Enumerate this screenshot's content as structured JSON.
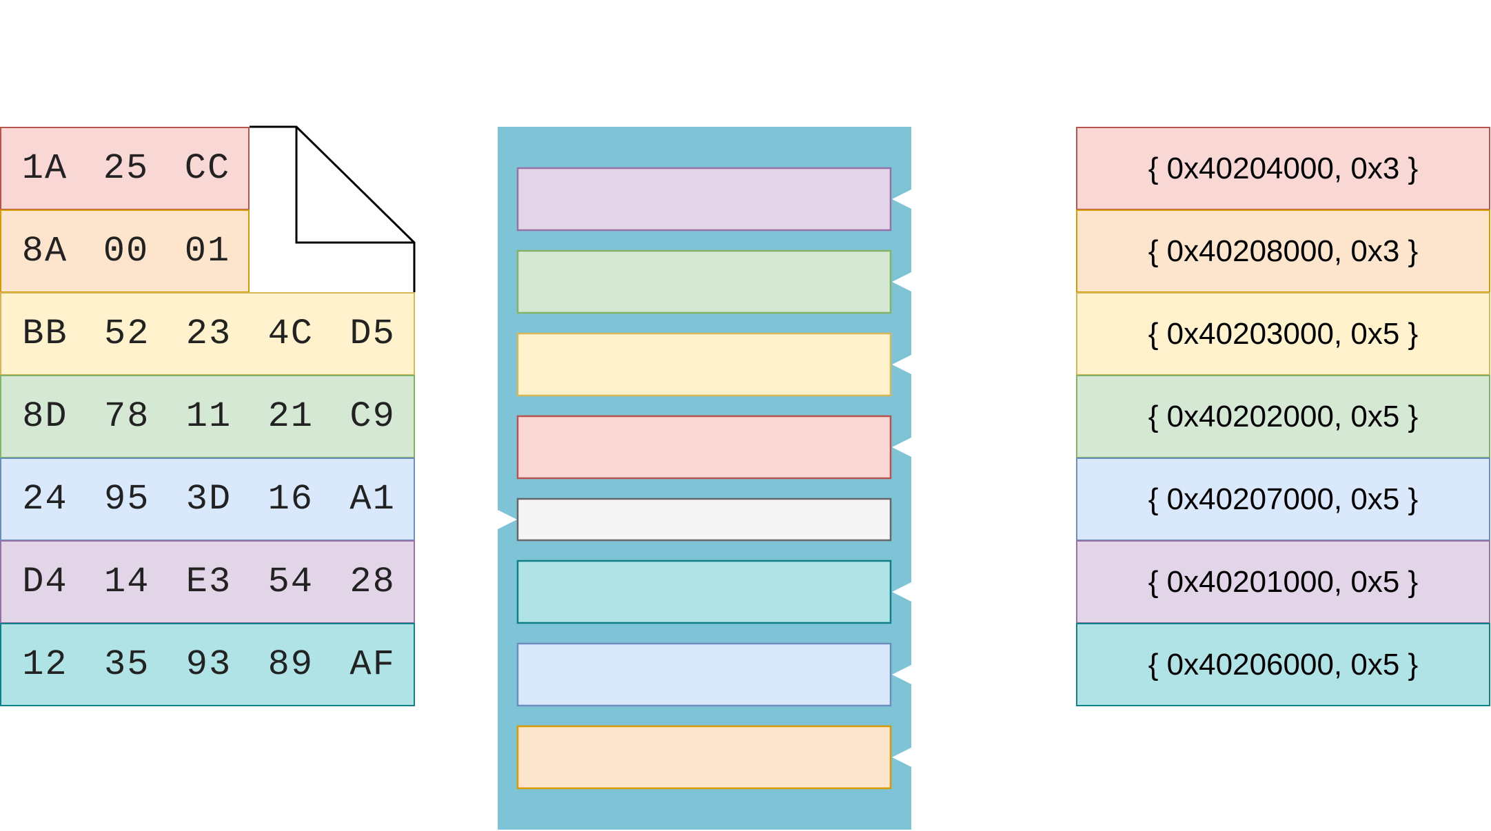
{
  "colors": {
    "red": {
      "fill": "#f8d7d5",
      "stroke": "#b85450"
    },
    "orange": {
      "fill": "#fde5cd",
      "stroke": "#d79b00"
    },
    "yellow": {
      "fill": "#fff2cc",
      "stroke": "#d6b656"
    },
    "green": {
      "fill": "#d5e8d4",
      "stroke": "#82b366"
    },
    "blue": {
      "fill": "#dae8fc",
      "stroke": "#6c8ebf"
    },
    "purple": {
      "fill": "#e1d5e7",
      "stroke": "#9673a6"
    },
    "teal": {
      "fill": "#b0e3e6",
      "stroke": "#0e8088"
    },
    "gray": {
      "fill": "#f5f5f5",
      "stroke": "#666666"
    },
    "cabinet": "#7fc3d6"
  },
  "file_rows": [
    {
      "color": "red",
      "bytes": [
        "1A",
        "25",
        "CC"
      ]
    },
    {
      "color": "orange",
      "bytes": [
        "8A",
        "00",
        "01"
      ]
    },
    {
      "color": "yellow",
      "bytes": [
        "BB",
        "52",
        "23",
        "4C",
        "D5"
      ]
    },
    {
      "color": "green",
      "bytes": [
        "8D",
        "78",
        "11",
        "21",
        "C9"
      ]
    },
    {
      "color": "blue",
      "bytes": [
        "24",
        "95",
        "3D",
        "16",
        "A1"
      ]
    },
    {
      "color": "purple",
      "bytes": [
        "D4",
        "14",
        "E3",
        "54",
        "28"
      ]
    },
    {
      "color": "teal",
      "bytes": [
        "12",
        "35",
        "93",
        "89",
        "AF"
      ]
    }
  ],
  "slots": [
    {
      "color": "purple",
      "notch": "right"
    },
    {
      "color": "green",
      "notch": "right"
    },
    {
      "color": "yellow",
      "notch": "right"
    },
    {
      "color": "red",
      "notch": "right"
    },
    {
      "color": "gray",
      "notch": "left"
    },
    {
      "color": "teal",
      "notch": "right"
    },
    {
      "color": "blue",
      "notch": "right"
    },
    {
      "color": "orange",
      "notch": "right"
    }
  ],
  "entries": [
    {
      "color": "red",
      "label": "{ 0x40204000, 0x3 }"
    },
    {
      "color": "orange",
      "label": "{ 0x40208000, 0x3 }"
    },
    {
      "color": "yellow",
      "label": "{ 0x40203000, 0x5 }"
    },
    {
      "color": "green",
      "label": "{ 0x40202000, 0x5 }"
    },
    {
      "color": "blue",
      "label": "{ 0x40207000, 0x5 }"
    },
    {
      "color": "purple",
      "label": "{ 0x40201000, 0x5 }"
    },
    {
      "color": "teal",
      "label": "{ 0x40206000, 0x5 }"
    }
  ]
}
